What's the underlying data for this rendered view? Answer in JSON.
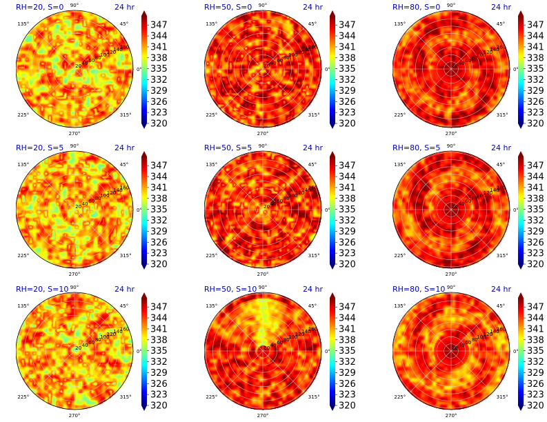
{
  "colors": {
    "title": "#0000cc",
    "jet": [
      "#00007f",
      "#0000ff",
      "#007fff",
      "#00ffff",
      "#7fff7f",
      "#ffff00",
      "#ff7f00",
      "#ff0000",
      "#7f0000"
    ],
    "grid": "#d9d9d9"
  },
  "chart_data": [
    {
      "type": "heatmap",
      "projection": "polar",
      "title_left": "RH=20, S=0",
      "title_right": "24 hr",
      "angle_ticks": [
        "90°",
        "45°",
        "0°",
        "315°",
        "270°",
        "225°",
        "180°",
        "135°"
      ],
      "radial_ticks": [
        "20",
        "40",
        "60",
        "80",
        "100",
        "120",
        "140",
        "160"
      ],
      "colorbar": {
        "ticks": [
          "347",
          "344",
          "341",
          "338",
          "335",
          "332",
          "329",
          "326",
          "323",
          "320"
        ],
        "min": 320,
        "max": 349.5,
        "extend": "both"
      },
      "pattern": {
        "style": "speckle",
        "base": 0.72,
        "seed": 11
      }
    },
    {
      "type": "heatmap",
      "projection": "polar",
      "title_left": "RH=50, S=0",
      "title_right": "24 hr",
      "angle_ticks": [
        "90°",
        "45°",
        "0°",
        "315°",
        "270°",
        "225°",
        "180°",
        "135°"
      ],
      "radial_ticks": [
        "20",
        "40",
        "60",
        "80",
        "100",
        "120",
        "140",
        "160"
      ],
      "colorbar": {
        "ticks": [
          "347",
          "344",
          "341",
          "338",
          "335",
          "332",
          "329",
          "326",
          "323",
          "320"
        ],
        "min": 320,
        "max": 349.5,
        "extend": "both"
      },
      "pattern": {
        "style": "speckle",
        "base": 0.86,
        "seed": 23
      }
    },
    {
      "type": "heatmap",
      "projection": "polar",
      "title_left": "RH=80, S=0",
      "title_right": "24 hr",
      "angle_ticks": [
        "90°",
        "45°",
        "0°",
        "315°",
        "270°",
        "225°",
        "180°",
        "135°"
      ],
      "radial_ticks": [
        "20",
        "40",
        "60",
        "80",
        "100",
        "120",
        "140",
        "160"
      ],
      "colorbar": {
        "ticks": [
          "347",
          "344",
          "341",
          "338",
          "335",
          "332",
          "329",
          "326",
          "323",
          "320"
        ],
        "min": 320,
        "max": 349.5,
        "extend": "both"
      },
      "pattern": {
        "style": "spiral",
        "base": 0.84,
        "seed": 37
      }
    },
    {
      "type": "heatmap",
      "projection": "polar",
      "title_left": "RH=20, S=5",
      "title_right": "24 hr",
      "angle_ticks": [
        "90°",
        "45°",
        "0°",
        "315°",
        "270°",
        "225°",
        "180°",
        "135°"
      ],
      "radial_ticks": [
        "20",
        "40",
        "60",
        "80",
        "100",
        "120",
        "140",
        "160"
      ],
      "colorbar": {
        "ticks": [
          "347",
          "344",
          "341",
          "338",
          "335",
          "332",
          "329",
          "326",
          "323",
          "320"
        ],
        "min": 320,
        "max": 349.5,
        "extend": "both"
      },
      "pattern": {
        "style": "speckle",
        "base": 0.72,
        "seed": 41
      }
    },
    {
      "type": "heatmap",
      "projection": "polar",
      "title_left": "RH=50, S=5",
      "title_right": "24 hr",
      "angle_ticks": [
        "90°",
        "45°",
        "0°",
        "315°",
        "270°",
        "225°",
        "180°",
        "135°"
      ],
      "radial_ticks": [
        "20",
        "40",
        "60",
        "80",
        "100",
        "120",
        "140",
        "160"
      ],
      "colorbar": {
        "ticks": [
          "347",
          "344",
          "341",
          "338",
          "335",
          "332",
          "329",
          "326",
          "323",
          "320"
        ],
        "min": 320,
        "max": 349.5,
        "extend": "both"
      },
      "pattern": {
        "style": "speckle",
        "base": 0.86,
        "seed": 53
      }
    },
    {
      "type": "heatmap",
      "projection": "polar",
      "title_left": "RH=80, S=5",
      "title_right": "24 hr",
      "angle_ticks": [
        "90°",
        "45°",
        "0°",
        "315°",
        "270°",
        "225°",
        "180°",
        "135°"
      ],
      "radial_ticks": [
        "20",
        "40",
        "60",
        "80",
        "100",
        "120",
        "140",
        "160"
      ],
      "colorbar": {
        "ticks": [
          "347",
          "344",
          "341",
          "338",
          "335",
          "332",
          "329",
          "326",
          "323",
          "320"
        ],
        "min": 320,
        "max": 349.5,
        "extend": "both"
      },
      "pattern": {
        "style": "spiral",
        "base": 0.84,
        "seed": 67
      }
    },
    {
      "type": "heatmap",
      "projection": "polar",
      "title_left": "RH=20, S=10",
      "title_right": "24 hr",
      "angle_ticks": [
        "90°",
        "45°",
        "0°",
        "315°",
        "270°",
        "225°",
        "180°",
        "135°"
      ],
      "radial_ticks": [
        "20",
        "40",
        "60",
        "80",
        "100",
        "120",
        "140",
        "160"
      ],
      "colorbar": {
        "ticks": [
          "347",
          "344",
          "341",
          "338",
          "335",
          "332",
          "329",
          "326",
          "323",
          "320"
        ],
        "min": 320,
        "max": 349.5,
        "extend": "both"
      },
      "pattern": {
        "style": "speckle",
        "base": 0.72,
        "seed": 71
      }
    },
    {
      "type": "heatmap",
      "projection": "polar",
      "title_left": "RH=50, S=10",
      "title_right": "24 hr",
      "angle_ticks": [
        "90°",
        "45°",
        "0°",
        "315°",
        "270°",
        "225°",
        "180°",
        "135°"
      ],
      "radial_ticks": [
        "20",
        "40",
        "60",
        "80",
        "100",
        "120",
        "140",
        "160"
      ],
      "colorbar": {
        "ticks": [
          "347",
          "344",
          "341",
          "338",
          "335",
          "332",
          "329",
          "326",
          "323",
          "320"
        ],
        "min": 320,
        "max": 349.5,
        "extend": "both"
      },
      "pattern": {
        "style": "plume",
        "base": 0.84,
        "seed": 83
      }
    },
    {
      "type": "heatmap",
      "projection": "polar",
      "title_left": "RH=80, S=10",
      "title_right": "24 hr",
      "angle_ticks": [
        "90°",
        "45°",
        "0°",
        "315°",
        "270°",
        "225°",
        "180°",
        "135°"
      ],
      "radial_ticks": [
        "20",
        "40",
        "60",
        "80",
        "100",
        "120",
        "140",
        "160"
      ],
      "colorbar": {
        "ticks": [
          "347",
          "344",
          "341",
          "338",
          "335",
          "332",
          "329",
          "326",
          "323",
          "320"
        ],
        "min": 320,
        "max": 349.5,
        "extend": "both"
      },
      "pattern": {
        "style": "spiral",
        "base": 0.8,
        "seed": 97
      }
    }
  ]
}
